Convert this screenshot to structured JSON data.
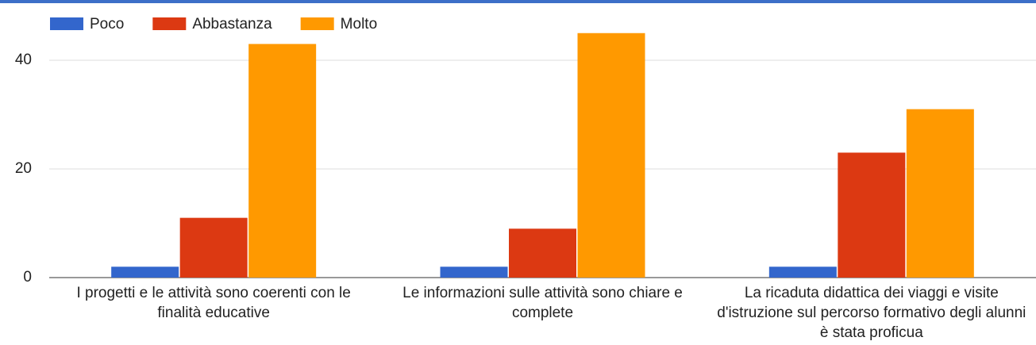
{
  "chart_data": {
    "type": "bar",
    "categories": [
      "I progetti e le attività sono coerenti con le finalità educative",
      "Le informazioni sulle attività sono chiare e complete",
      "La ricaduta didattica dei viaggi e visite d'istruzione sul percorso formativo degli alunni è stata proficua"
    ],
    "series": [
      {
        "name": "Poco",
        "color": "#3366cc",
        "values": [
          2,
          2,
          2
        ]
      },
      {
        "name": "Abbastanza",
        "color": "#dc3912",
        "values": [
          11,
          9,
          23
        ]
      },
      {
        "name": "Molto",
        "color": "#ff9900",
        "values": [
          43,
          45,
          31
        ]
      }
    ],
    "ylim": [
      0,
      50
    ],
    "yticks": [
      0,
      20,
      40
    ],
    "grid": true,
    "legend": "top"
  }
}
